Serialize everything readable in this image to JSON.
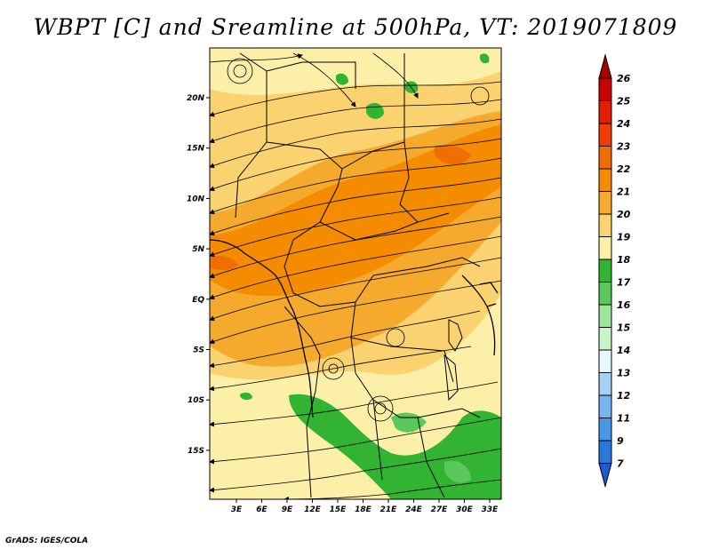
{
  "title": "WBPT [C] and Sreamline at 500hPa, VT: 2019071809",
  "credit": "GrADS: IGES/COLA",
  "map": {
    "lon_labels": [
      "3E",
      "6E",
      "9E",
      "12E",
      "15E",
      "18E",
      "21E",
      "24E",
      "27E",
      "30E",
      "33E"
    ],
    "lat_labels": [
      "20N",
      "15N",
      "10N",
      "5N",
      "EQ",
      "5S",
      "10S",
      "15S"
    ]
  },
  "colorbar": {
    "levels": [
      "26",
      "25",
      "24",
      "23",
      "22",
      "21",
      "20",
      "19",
      "18",
      "17",
      "16",
      "15",
      "14",
      "13",
      "12",
      "11",
      "9",
      "7"
    ],
    "colors": [
      "#a50000",
      "#c80000",
      "#e11e00",
      "#f03c00",
      "#f06e00",
      "#f58c00",
      "#f5aa2d",
      "#fad270",
      "#fcefa8",
      "#32b432",
      "#5ac85a",
      "#9be69b",
      "#c8f5c8",
      "#e6f8ff",
      "#a5d2f5",
      "#78b4f0",
      "#4b96e6",
      "#2878dc",
      "#1e5ad2"
    ]
  }
}
